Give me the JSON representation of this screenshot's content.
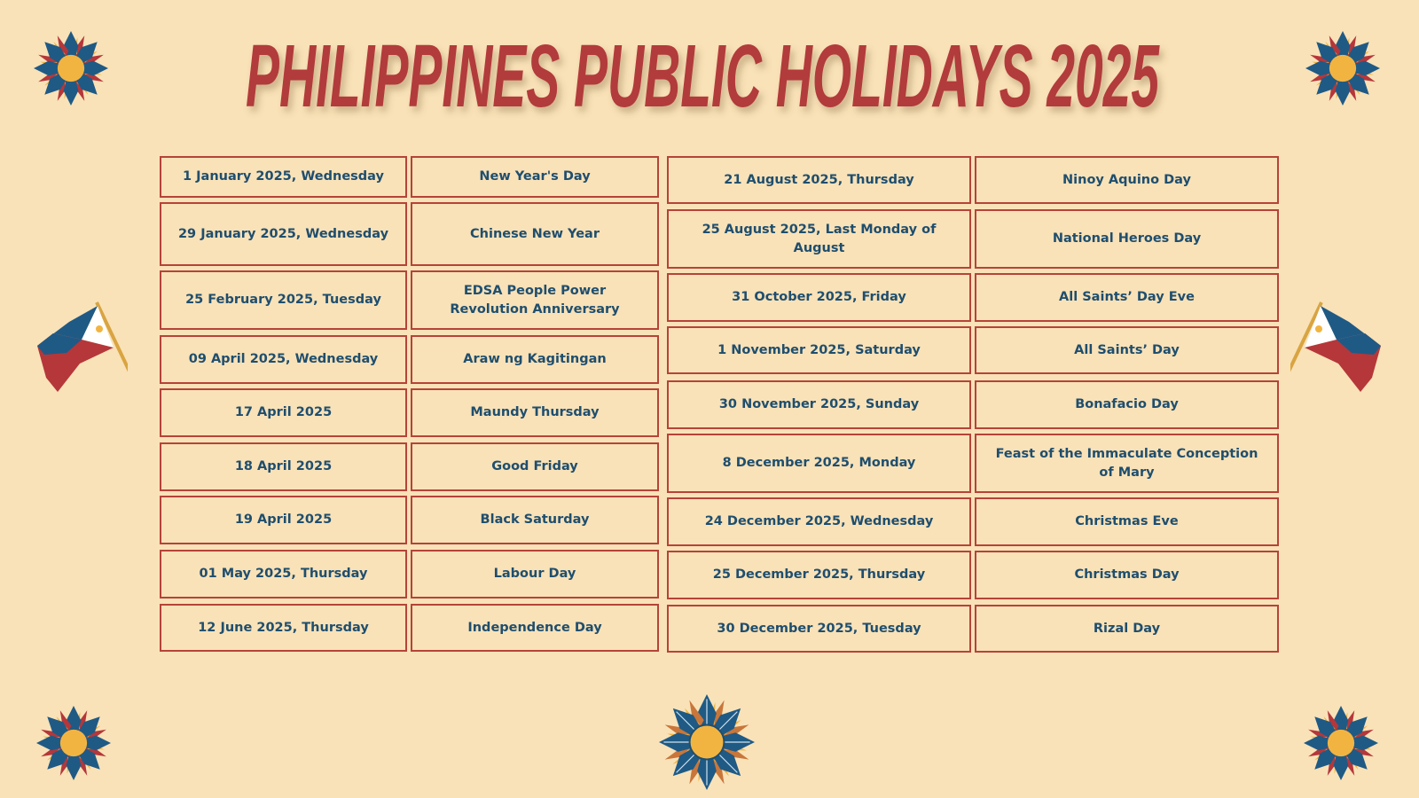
{
  "title": "PHILIPPINES PUBLIC HOLIDAYS 2025",
  "colors": {
    "background": "#f9e2b8",
    "title": "#b23a3a",
    "text": "#1f4e6e",
    "border": "#b5433a",
    "sun_blue": "#1f5a85",
    "sun_yellow": "#f2b441",
    "sun_red": "#b5373a"
  },
  "left_table": [
    {
      "date": "1 January 2025, Wednesday",
      "holiday": "New Year's Day"
    },
    {
      "date": "29 January 2025, Wednesday",
      "holiday": "Chinese New Year"
    },
    {
      "date": "25 February 2025, Tuesday",
      "holiday": "EDSA People Power Revolution Anniversary"
    },
    {
      "date": "09 April 2025, Wednesday",
      "holiday": "Araw ng Kagitingan"
    },
    {
      "date": "17 April 2025",
      "holiday": "Maundy Thursday"
    },
    {
      "date": "18 April 2025",
      "holiday": "Good Friday"
    },
    {
      "date": "19 April 2025",
      "holiday": "Black Saturday"
    },
    {
      "date": "01 May 2025, Thursday",
      "holiday": "Labour Day"
    },
    {
      "date": "12 June 2025, Thursday",
      "holiday": "Independence Day"
    }
  ],
  "right_table": [
    {
      "date": "21 August 2025, Thursday",
      "holiday": "Ninoy Aquino Day"
    },
    {
      "date": "25 August 2025, Last Monday of August",
      "holiday": "National Heroes Day"
    },
    {
      "date": "31 October 2025, Friday",
      "holiday": "All Saints’ Day Eve"
    },
    {
      "date": "1 November 2025, Saturday",
      "holiday": "All Saints’ Day"
    },
    {
      "date": "30 November 2025, Sunday",
      "holiday": "Bonafacio Day"
    },
    {
      "date": "8 December 2025, Monday",
      "holiday": "Feast of the Immaculate Conception of Mary"
    },
    {
      "date": "24 December 2025, Wednesday",
      "holiday": "Christmas Eve"
    },
    {
      "date": "25 December 2025, Thursday",
      "holiday": "Christmas Day"
    },
    {
      "date": "30 December 2025, Tuesday",
      "holiday": "Rizal Day"
    }
  ],
  "decorations": [
    "sun-icon",
    "philippine-flag-icon"
  ]
}
